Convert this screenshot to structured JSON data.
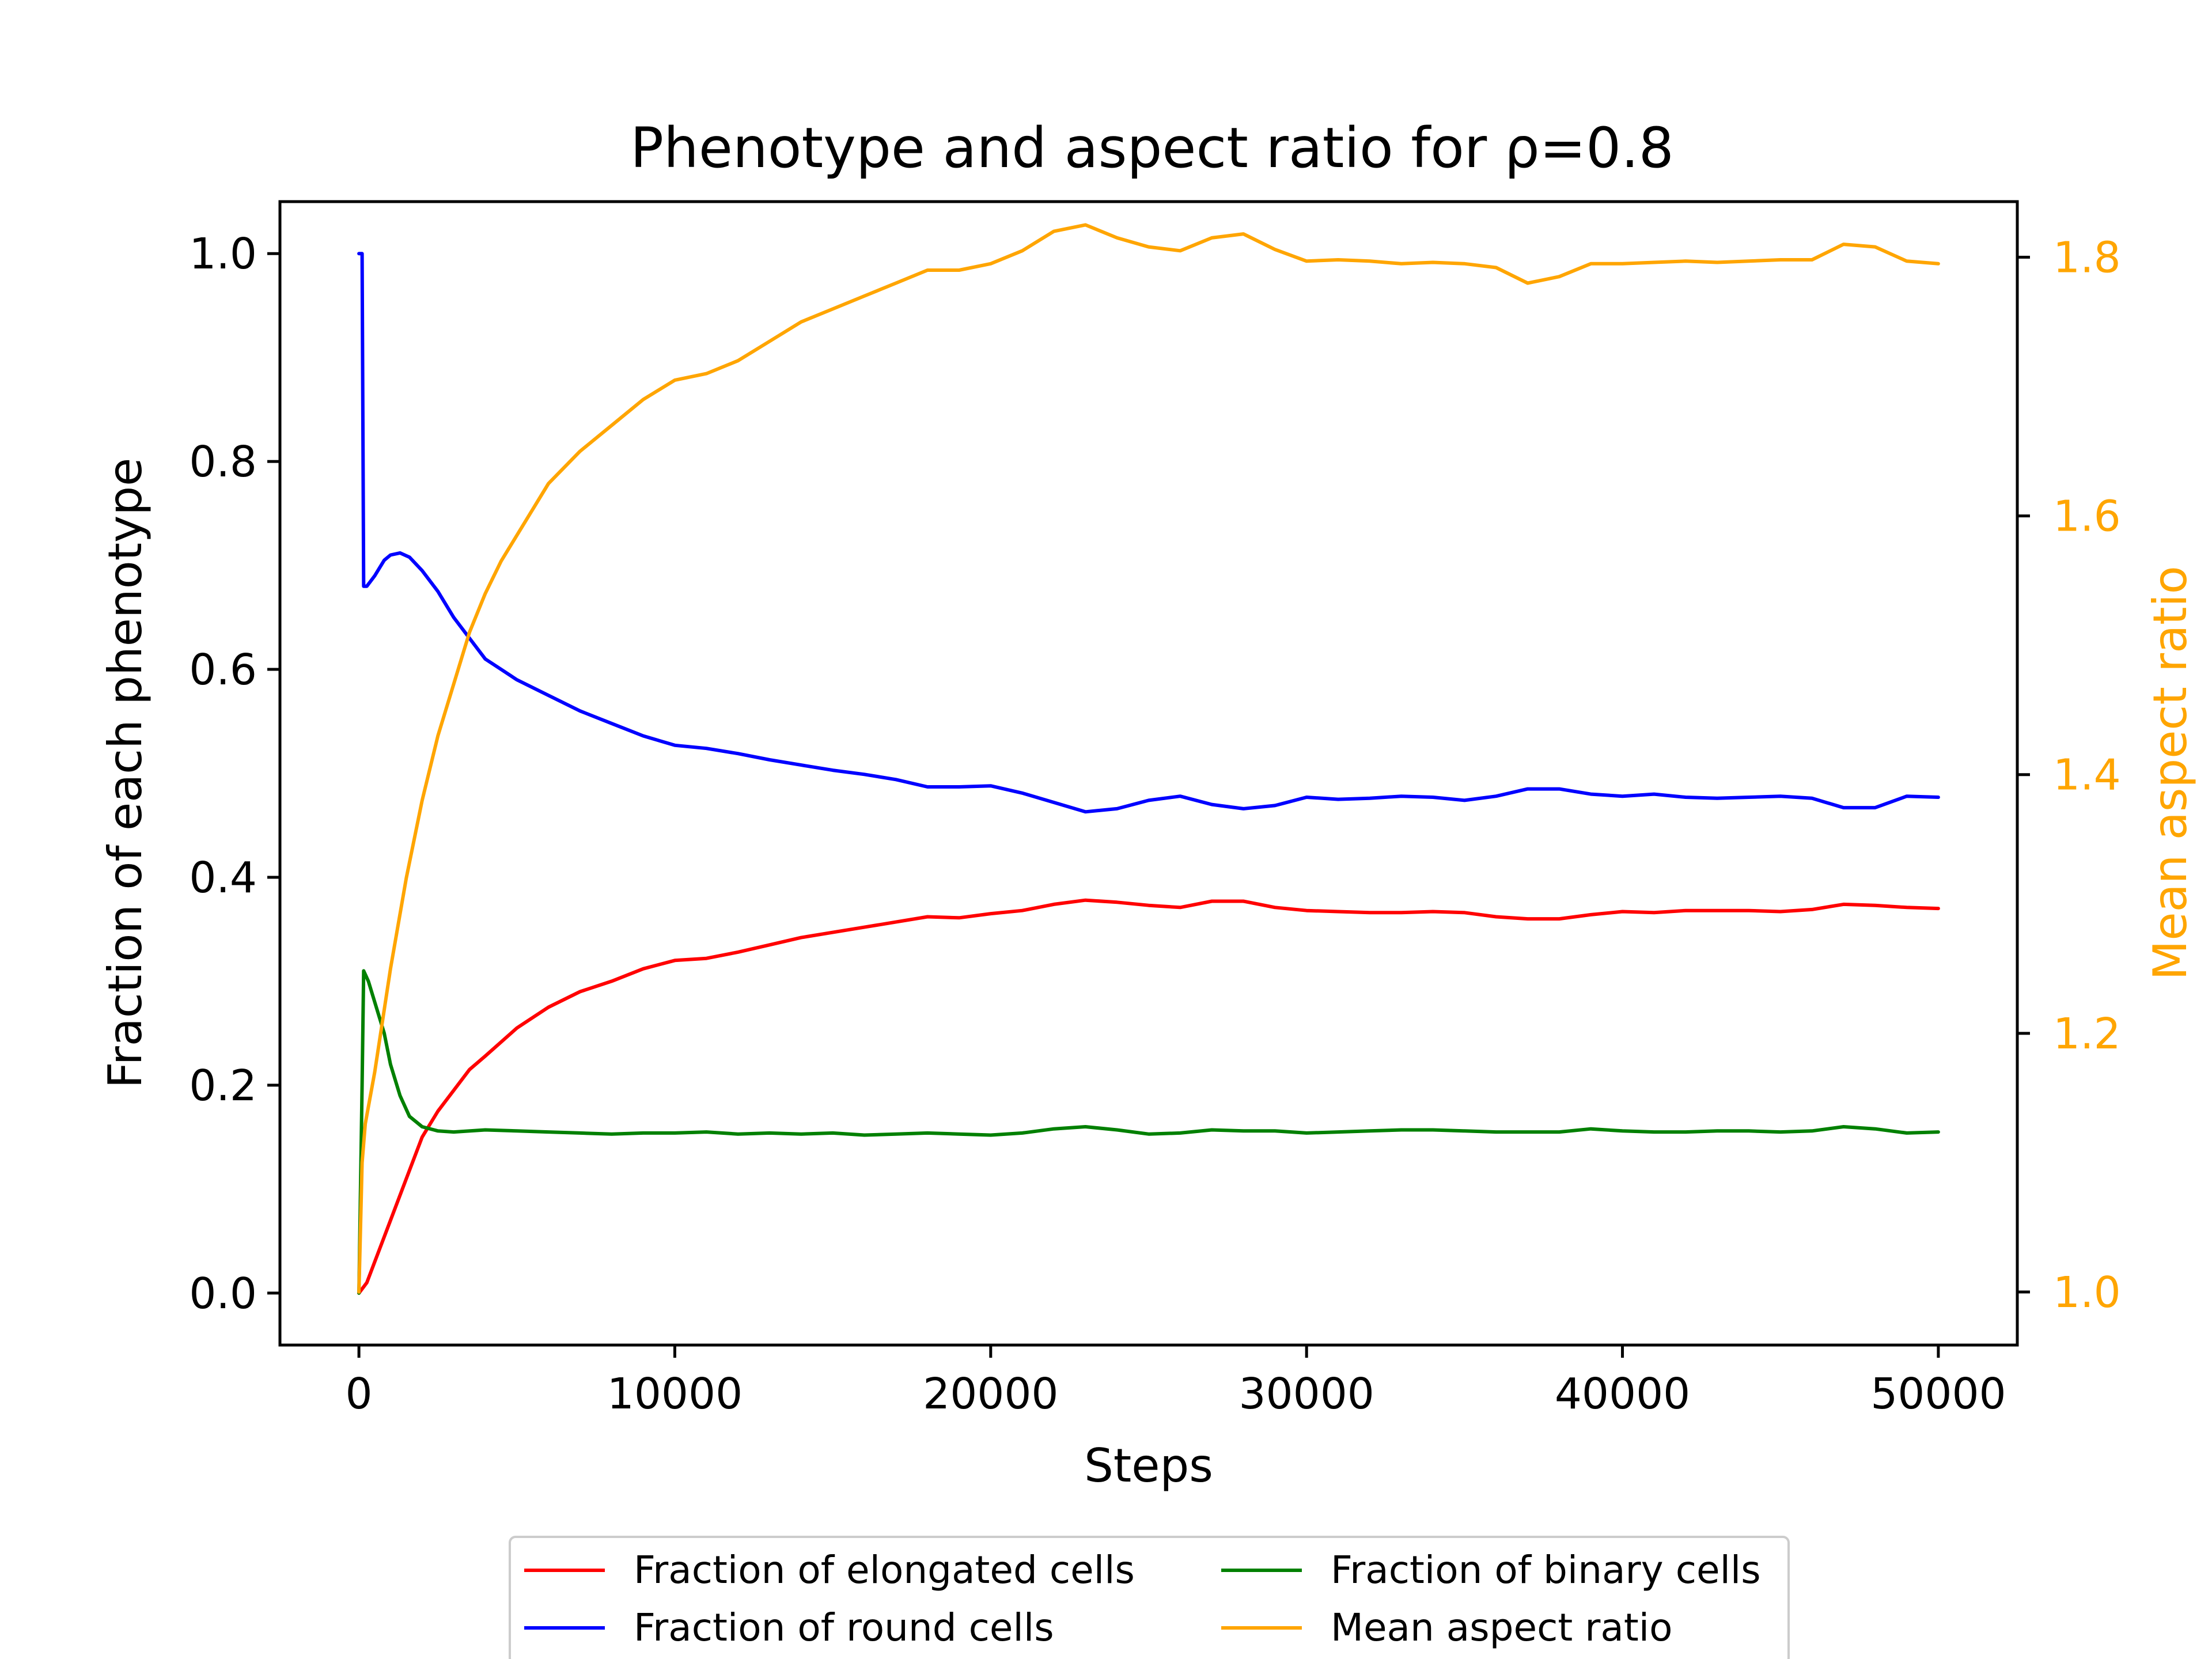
{
  "chart_data": {
    "type": "line",
    "title": "Phenotype and aspect ratio for ρ=0.8",
    "xlabel": "Steps",
    "ylabel_left": "Fraction of each phenotype",
    "ylabel_right": "Mean aspect ratio",
    "xlim": [
      -2500,
      52500
    ],
    "ylim_left": [
      -0.05,
      1.05
    ],
    "ylim_right": [
      0.959,
      1.843
    ],
    "xticks": [
      0,
      10000,
      20000,
      30000,
      40000,
      50000
    ],
    "xtick_labels": [
      "0",
      "10000",
      "20000",
      "30000",
      "40000",
      "50000"
    ],
    "yticks_left": [
      0.0,
      0.2,
      0.4,
      0.6,
      0.8,
      1.0
    ],
    "ytick_labels_left": [
      "0.0",
      "0.2",
      "0.4",
      "0.6",
      "0.8",
      "1.0"
    ],
    "yticks_right": [
      1.0,
      1.2,
      1.4,
      1.6,
      1.8
    ],
    "ytick_labels_right": [
      "1.0",
      "1.2",
      "1.4",
      "1.6",
      "1.8"
    ],
    "grid": false,
    "legend_placement": "below-center",
    "series": [
      {
        "name": "Fraction of elongated cells",
        "color": "#ff0000",
        "axis": "left",
        "x": [
          0,
          250,
          500,
          1000,
          1500,
          2000,
          2500,
          3000,
          3500,
          4000,
          5000,
          6000,
          7000,
          8000,
          9000,
          10000,
          11000,
          12000,
          13000,
          14000,
          15000,
          16000,
          17000,
          18000,
          19000,
          20000,
          21000,
          22000,
          23000,
          24000,
          25000,
          26000,
          27000,
          28000,
          29000,
          30000,
          31000,
          32000,
          33000,
          34000,
          35000,
          36000,
          37000,
          38000,
          39000,
          40000,
          41000,
          42000,
          43000,
          44000,
          45000,
          46000,
          47000,
          48000,
          49000,
          50000
        ],
        "y": [
          0.0,
          0.01,
          0.03,
          0.07,
          0.11,
          0.15,
          0.175,
          0.195,
          0.215,
          0.228,
          0.255,
          0.275,
          0.29,
          0.3,
          0.312,
          0.32,
          0.322,
          0.328,
          0.335,
          0.342,
          0.347,
          0.352,
          0.357,
          0.362,
          0.361,
          0.365,
          0.368,
          0.374,
          0.378,
          0.376,
          0.373,
          0.371,
          0.377,
          0.377,
          0.371,
          0.368,
          0.367,
          0.366,
          0.366,
          0.367,
          0.366,
          0.362,
          0.36,
          0.36,
          0.364,
          0.367,
          0.366,
          0.368,
          0.368,
          0.368,
          0.367,
          0.369,
          0.374,
          0.373,
          0.371,
          0.37
        ]
      },
      {
        "name": "Fraction of round cells",
        "color": "#0000ff",
        "axis": "left",
        "x": [
          0,
          100,
          150,
          250,
          500,
          800,
          1000,
          1300,
          1600,
          2000,
          2500,
          3000,
          3500,
          4000,
          4500,
          5000,
          6000,
          7000,
          8000,
          9000,
          10000,
          11000,
          12000,
          13000,
          14000,
          15000,
          16000,
          17000,
          18000,
          19000,
          20000,
          21000,
          22000,
          23000,
          24000,
          25000,
          26000,
          27000,
          28000,
          29000,
          30000,
          31000,
          32000,
          33000,
          34000,
          35000,
          36000,
          37000,
          38000,
          39000,
          40000,
          41000,
          42000,
          43000,
          44000,
          45000,
          46000,
          47000,
          48000,
          49000,
          50000
        ],
        "y": [
          1.0,
          1.0,
          0.68,
          0.68,
          0.69,
          0.705,
          0.71,
          0.712,
          0.708,
          0.695,
          0.675,
          0.65,
          0.63,
          0.61,
          0.6,
          0.59,
          0.575,
          0.56,
          0.548,
          0.536,
          0.527,
          0.524,
          0.519,
          0.513,
          0.508,
          0.503,
          0.499,
          0.494,
          0.487,
          0.487,
          0.488,
          0.481,
          0.472,
          0.463,
          0.466,
          0.474,
          0.478,
          0.47,
          0.466,
          0.469,
          0.477,
          0.475,
          0.476,
          0.478,
          0.477,
          0.474,
          0.478,
          0.485,
          0.485,
          0.48,
          0.478,
          0.48,
          0.477,
          0.476,
          0.477,
          0.478,
          0.476,
          0.467,
          0.467,
          0.478,
          0.477
        ]
      },
      {
        "name": "Fraction of binary cells",
        "color": "#008000",
        "axis": "left",
        "x": [
          0,
          100,
          150,
          300,
          500,
          800,
          1000,
          1300,
          1600,
          2000,
          2500,
          3000,
          4000,
          5000,
          6000,
          7000,
          8000,
          9000,
          10000,
          11000,
          12000,
          13000,
          14000,
          15000,
          16000,
          17000,
          18000,
          19000,
          20000,
          21000,
          22000,
          23000,
          24000,
          25000,
          26000,
          27000,
          28000,
          29000,
          30000,
          31000,
          32000,
          33000,
          34000,
          35000,
          36000,
          37000,
          38000,
          39000,
          40000,
          41000,
          42000,
          43000,
          44000,
          45000,
          46000,
          47000,
          48000,
          49000,
          50000
        ],
        "y": [
          0.0,
          0.2,
          0.31,
          0.3,
          0.28,
          0.25,
          0.22,
          0.19,
          0.17,
          0.16,
          0.156,
          0.155,
          0.157,
          0.156,
          0.155,
          0.154,
          0.153,
          0.154,
          0.154,
          0.155,
          0.153,
          0.154,
          0.153,
          0.154,
          0.152,
          0.153,
          0.154,
          0.153,
          0.152,
          0.154,
          0.158,
          0.16,
          0.157,
          0.153,
          0.154,
          0.157,
          0.156,
          0.156,
          0.154,
          0.155,
          0.156,
          0.157,
          0.157,
          0.156,
          0.155,
          0.155,
          0.155,
          0.158,
          0.156,
          0.155,
          0.155,
          0.156,
          0.156,
          0.155,
          0.156,
          0.16,
          0.158,
          0.154,
          0.155
        ]
      },
      {
        "name": "Mean aspect ratio",
        "color": "#FFA500",
        "axis": "right",
        "x": [
          0,
          100,
          200,
          500,
          1000,
          1500,
          2000,
          2500,
          3000,
          3500,
          4000,
          4500,
          5000,
          5500,
          6000,
          7000,
          8000,
          9000,
          10000,
          11000,
          12000,
          13000,
          14000,
          15000,
          16000,
          17000,
          18000,
          19000,
          20000,
          21000,
          22000,
          23000,
          24000,
          25000,
          26000,
          27000,
          28000,
          29000,
          30000,
          31000,
          32000,
          33000,
          34000,
          35000,
          36000,
          37000,
          38000,
          39000,
          40000,
          41000,
          42000,
          43000,
          44000,
          45000,
          46000,
          47000,
          48000,
          49000,
          50000
        ],
        "y": [
          1.0,
          1.1,
          1.13,
          1.17,
          1.25,
          1.32,
          1.38,
          1.43,
          1.47,
          1.51,
          1.54,
          1.565,
          1.585,
          1.605,
          1.625,
          1.65,
          1.67,
          1.69,
          1.705,
          1.71,
          1.72,
          1.735,
          1.75,
          1.76,
          1.77,
          1.78,
          1.79,
          1.79,
          1.795,
          1.805,
          1.82,
          1.825,
          1.815,
          1.808,
          1.805,
          1.815,
          1.818,
          1.806,
          1.797,
          1.798,
          1.797,
          1.795,
          1.796,
          1.795,
          1.792,
          1.78,
          1.785,
          1.795,
          1.795,
          1.796,
          1.797,
          1.796,
          1.797,
          1.798,
          1.798,
          1.81,
          1.808,
          1.797,
          1.795
        ]
      }
    ]
  },
  "legend": {
    "entries": [
      {
        "label": "Fraction of elongated cells",
        "color": "#ff0000"
      },
      {
        "label": "Fraction of round cells",
        "color": "#0000ff"
      },
      {
        "label": "Fraction of binary cells",
        "color": "#008000"
      },
      {
        "label": "Mean aspect ratio",
        "color": "#FFA500"
      }
    ]
  }
}
